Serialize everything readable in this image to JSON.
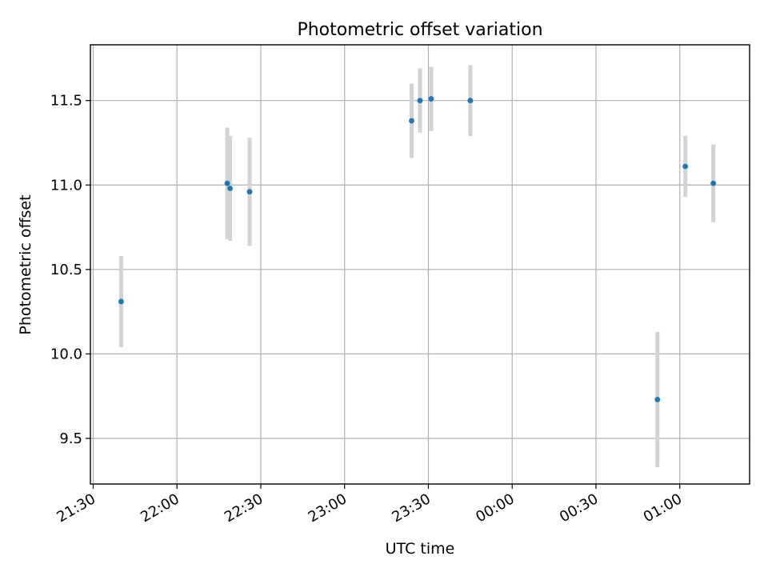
{
  "chart_data": {
    "type": "scatter",
    "title": "Photometric offset variation",
    "xlabel": "UTC time",
    "ylabel": "Photometric offset",
    "x_axis_type": "time",
    "x_ticks": [
      "21:30",
      "22:00",
      "22:30",
      "23:00",
      "23:30",
      "00:00",
      "00:30",
      "01:00"
    ],
    "xlim": [
      "21:29",
      "01:25"
    ],
    "y_ticks": [
      9.5,
      10.0,
      10.5,
      11.0,
      11.5
    ],
    "y_tick_labels": [
      "9.5",
      "10.0",
      "10.5",
      "11.0",
      "11.5"
    ],
    "ylim": [
      9.23,
      11.83
    ],
    "grid": true,
    "errorbar_color": "#d3d3d3",
    "marker_color": "#1f77b4",
    "points": [
      {
        "time": "21:40",
        "y": 10.31,
        "err": 0.27
      },
      {
        "time": "22:18",
        "y": 11.01,
        "err": 0.33
      },
      {
        "time": "22:19",
        "y": 10.98,
        "err": 0.31
      },
      {
        "time": "22:26",
        "y": 10.96,
        "err": 0.32
      },
      {
        "time": "23:24",
        "y": 11.38,
        "err": 0.22
      },
      {
        "time": "23:27",
        "y": 11.5,
        "err": 0.19
      },
      {
        "time": "23:31",
        "y": 11.51,
        "err": 0.19
      },
      {
        "time": "23:45",
        "y": 11.5,
        "err": 0.21
      },
      {
        "time": "00:52",
        "y": 9.73,
        "err": 0.4
      },
      {
        "time": "01:02",
        "y": 11.11,
        "err": 0.18
      },
      {
        "time": "01:12",
        "y": 11.01,
        "err": 0.23
      }
    ]
  }
}
